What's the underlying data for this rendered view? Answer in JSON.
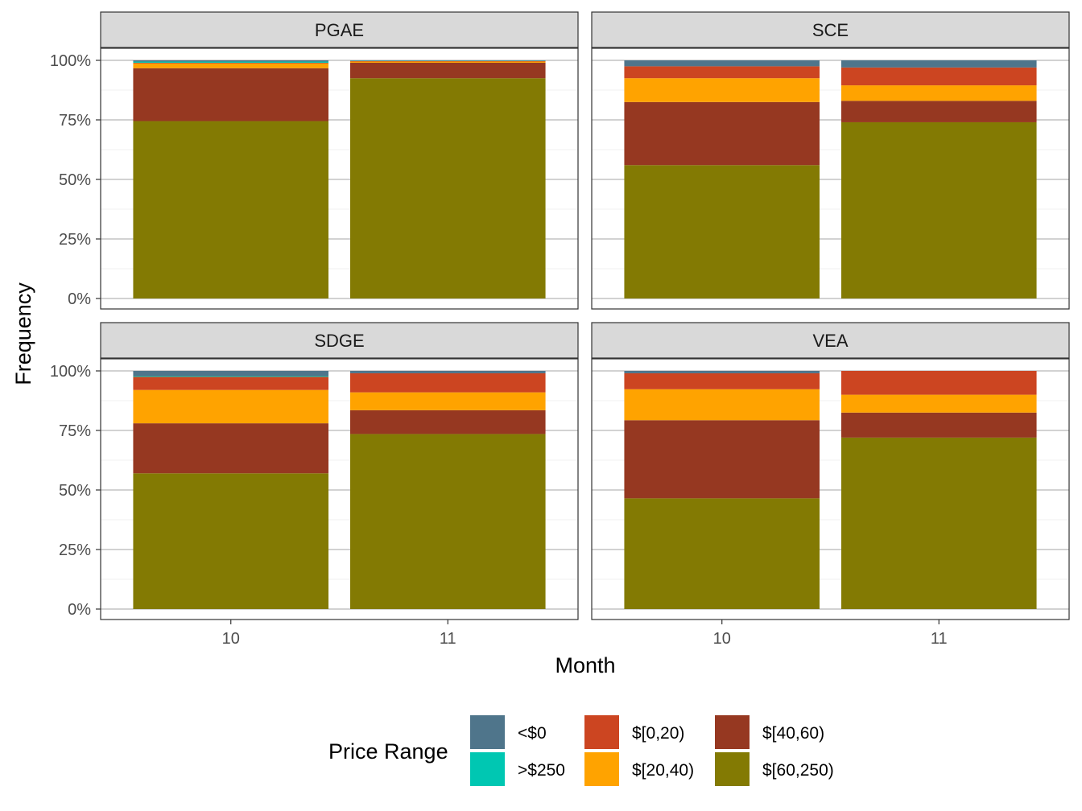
{
  "chart_data": {
    "type": "bar",
    "stacked": true,
    "facet_layout": "2x2",
    "xlabel": "Month",
    "ylabel": "Frequency",
    "ylim": [
      0,
      1
    ],
    "yticks": [
      "0%",
      "25%",
      "50%",
      "75%",
      "100%"
    ],
    "categories": [
      "10",
      "11"
    ],
    "legend": {
      "title": "Price Range",
      "position": "bottom",
      "entries": [
        {
          "label": "<$0",
          "color": "#4f758b"
        },
        {
          "label": ">$250",
          "color": "#00c7b2"
        },
        {
          "label": "$[0,20)",
          "color": "#cc4521"
        },
        {
          "label": "$[20,40)",
          "color": "#ffa300"
        },
        {
          "label": "$[40,60)",
          "color": "#963821"
        },
        {
          "label": "$[60,250)",
          "color": "#837a03"
        }
      ]
    },
    "stack_order_bottom_to_top": [
      "$[60,250)",
      "$[40,60)",
      "$[20,40)",
      "$[0,20)",
      ">$250",
      "<$0"
    ],
    "panels": [
      {
        "name": "PGAE",
        "series": [
          {
            "name": "$[60,250)",
            "values": [
              0.745,
              0.925
            ]
          },
          {
            "name": "$[40,60)",
            "values": [
              0.222,
              0.065
            ]
          },
          {
            "name": "$[20,40)",
            "values": [
              0.02,
              0.005
            ]
          },
          {
            "name": "$[0,20)",
            "values": [
              0.003,
              0.002
            ]
          },
          {
            "name": ">$250",
            "values": [
              0.005,
              0.001
            ]
          },
          {
            "name": "<$0",
            "values": [
              0.005,
              0.002
            ]
          }
        ]
      },
      {
        "name": "SCE",
        "series": [
          {
            "name": "$[60,250)",
            "values": [
              0.56,
              0.74
            ]
          },
          {
            "name": "$[40,60)",
            "values": [
              0.265,
              0.09
            ]
          },
          {
            "name": "$[20,40)",
            "values": [
              0.1,
              0.065
            ]
          },
          {
            "name": "$[0,20)",
            "values": [
              0.05,
              0.075
            ]
          },
          {
            "name": ">$250",
            "values": [
              0.0,
              0.0
            ]
          },
          {
            "name": "<$0",
            "values": [
              0.025,
              0.03
            ]
          }
        ]
      },
      {
        "name": "SDGE",
        "series": [
          {
            "name": "$[60,250)",
            "values": [
              0.57,
              0.735
            ]
          },
          {
            "name": "$[40,60)",
            "values": [
              0.21,
              0.1
            ]
          },
          {
            "name": "$[20,40)",
            "values": [
              0.14,
              0.075
            ]
          },
          {
            "name": "$[0,20)",
            "values": [
              0.055,
              0.08
            ]
          },
          {
            "name": ">$250",
            "values": [
              0.003,
              0.0
            ]
          },
          {
            "name": "<$0",
            "values": [
              0.022,
              0.01
            ]
          }
        ]
      },
      {
        "name": "VEA",
        "series": [
          {
            "name": "$[60,250)",
            "values": [
              0.465,
              0.72
            ]
          },
          {
            "name": "$[40,60)",
            "values": [
              0.328,
              0.105
            ]
          },
          {
            "name": "$[20,40)",
            "values": [
              0.13,
              0.075
            ]
          },
          {
            "name": "$[0,20)",
            "values": [
              0.067,
              0.1
            ]
          },
          {
            "name": ">$250",
            "values": [
              0.0,
              0.0
            ]
          },
          {
            "name": "<$0",
            "values": [
              0.01,
              0.0
            ]
          }
        ]
      }
    ]
  }
}
